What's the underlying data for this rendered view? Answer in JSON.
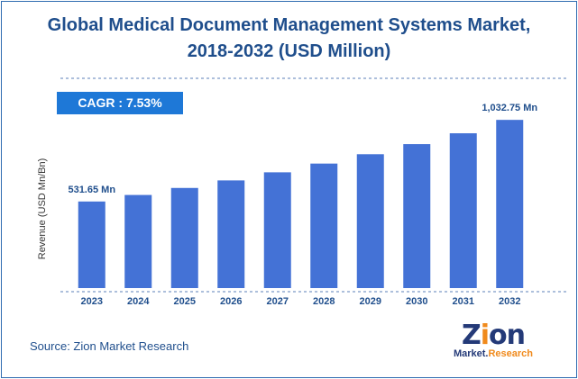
{
  "title_line1": "Global Medical Document Management Systems Market,",
  "title_line2": "2018-2032 (USD Million)",
  "cagr": "CAGR :  7.53%",
  "source": "Source: Zion Market Research",
  "logo": {
    "word_start": "Z",
    "word_i": "i",
    "word_end": "on",
    "sub_1": "Market.",
    "sub_2": "Research"
  },
  "colors": {
    "bar": "#4472d6",
    "title": "#1f4e8c",
    "badge": "#1e78d7",
    "axis": "#5b7fb8"
  },
  "chart_data": {
    "type": "bar",
    "title": "Global Medical Document Management Systems Market, 2018-2032 (USD Million)",
    "ylabel": "Revenue (USD Mn/Bn)",
    "xlabel": "",
    "categories": [
      "2023",
      "2024",
      "2025",
      "2026",
      "2027",
      "2028",
      "2029",
      "2030",
      "2031",
      "2032"
    ],
    "values": [
      531.65,
      571.7,
      614.8,
      661.1,
      710.9,
      764.5,
      822.0,
      884.0,
      950.5,
      1032.75
    ],
    "ylim": [
      0,
      1100
    ],
    "grid": false,
    "annotations": [
      {
        "category": "2023",
        "text": "531.65 Mn"
      },
      {
        "category": "2032",
        "text": "1,032.75 Mn"
      }
    ]
  }
}
